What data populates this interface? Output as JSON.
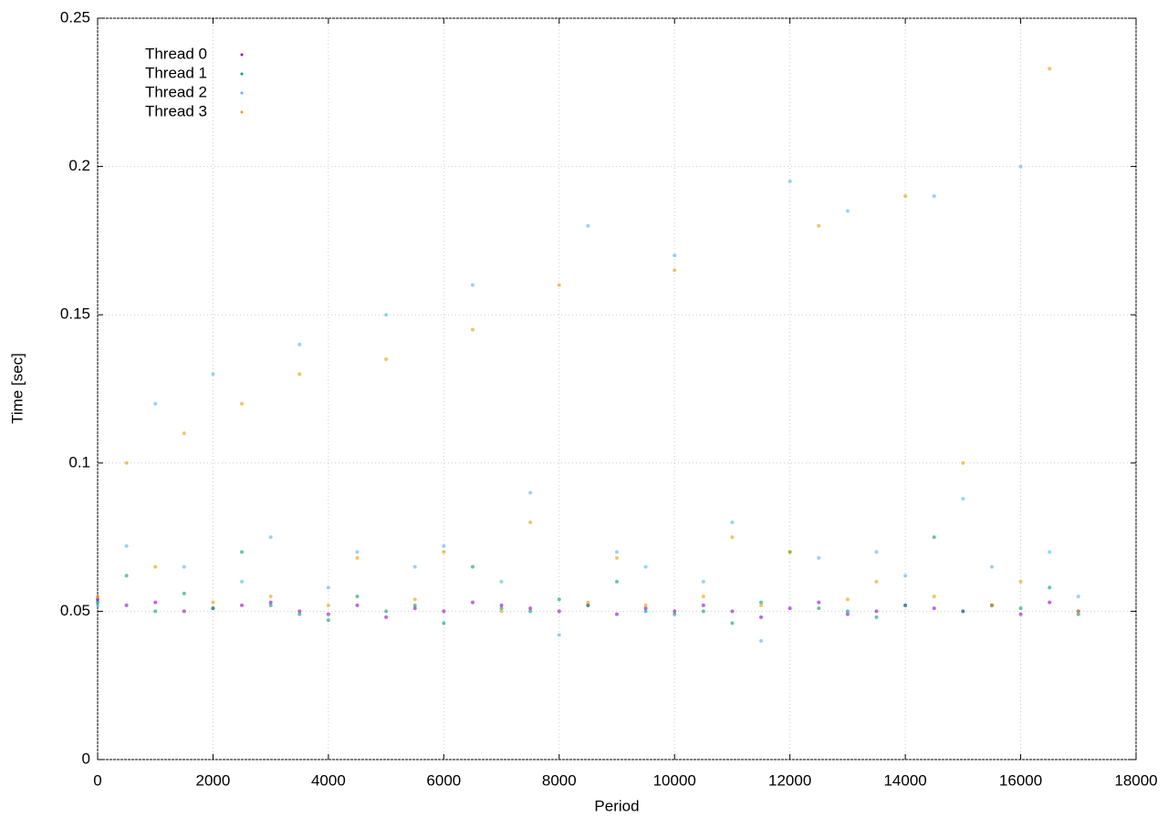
{
  "chart_data": {
    "type": "scatter",
    "x_label": "Period",
    "y_label": "Time [sec]",
    "x": [
      0,
      500,
      1000,
      1500,
      2000,
      2500,
      3000,
      3500,
      4000,
      4500,
      5000,
      5500,
      6000,
      6500,
      7000,
      7500,
      8000,
      8500,
      9000,
      9500,
      10000,
      10500,
      11000,
      11500,
      12000,
      12500,
      13000,
      13500,
      14000,
      14500,
      15000,
      15500,
      16000,
      16500,
      17000
    ],
    "series": [
      {
        "name": "Thread 0",
        "color": "#9400d3",
        "values": [
          0.054,
          0.052,
          0.053,
          0.05,
          0.051,
          0.052,
          0.053,
          0.05,
          0.049,
          0.052,
          0.048,
          0.051,
          0.05,
          0.053,
          0.052,
          0.051,
          0.05,
          0.052,
          0.049,
          0.051,
          0.05,
          0.052,
          0.05,
          0.048,
          0.051,
          0.053,
          0.049,
          0.05,
          0.052,
          0.051,
          0.05,
          0.052,
          0.049,
          0.053,
          0.05
        ]
      },
      {
        "name": "Thread 1",
        "color": "#009e73",
        "values": [
          0.053,
          0.062,
          0.05,
          0.056,
          0.051,
          0.07,
          0.052,
          0.049,
          0.047,
          0.055,
          0.05,
          0.052,
          0.046,
          0.065,
          0.051,
          0.05,
          0.054,
          0.052,
          0.06,
          0.05,
          0.049,
          0.05,
          0.046,
          0.053,
          0.07,
          0.051,
          0.05,
          0.048,
          0.052,
          0.075,
          0.05,
          0.052,
          0.051,
          0.058,
          0.049
        ]
      },
      {
        "name": "Thread 2",
        "color": "#56b4e9",
        "values": [
          0.052,
          0.072,
          0.12,
          0.065,
          0.13,
          0.06,
          0.075,
          0.14,
          0.058,
          0.07,
          0.15,
          0.065,
          0.072,
          0.16,
          0.06,
          0.09,
          0.042,
          0.18,
          0.07,
          0.065,
          0.17,
          0.06,
          0.08,
          0.04,
          0.195,
          0.068,
          0.185,
          0.07,
          0.062,
          0.19,
          0.088,
          0.065,
          0.2,
          0.07,
          0.055
        ]
      },
      {
        "name": "Thread 3",
        "color": "#e69f00",
        "values": [
          0.055,
          0.1,
          0.065,
          0.11,
          0.053,
          0.12,
          0.055,
          0.13,
          0.052,
          0.068,
          0.135,
          0.054,
          0.07,
          0.145,
          0.05,
          0.08,
          0.16,
          0.053,
          0.068,
          0.052,
          0.165,
          0.055,
          0.075,
          0.052,
          0.07,
          0.18,
          0.054,
          0.06,
          0.19,
          0.055,
          0.1,
          0.052,
          0.06,
          0.233,
          0.05
        ]
      }
    ],
    "xlim": [
      0,
      18000
    ],
    "xticks": [
      0,
      2000,
      4000,
      6000,
      8000,
      10000,
      12000,
      14000,
      16000,
      18000
    ],
    "ylim": [
      0,
      0.25
    ],
    "yticks": [
      0,
      0.05,
      0.1,
      0.15,
      0.2,
      0.25
    ],
    "grid": true,
    "legend": "upper-left"
  }
}
